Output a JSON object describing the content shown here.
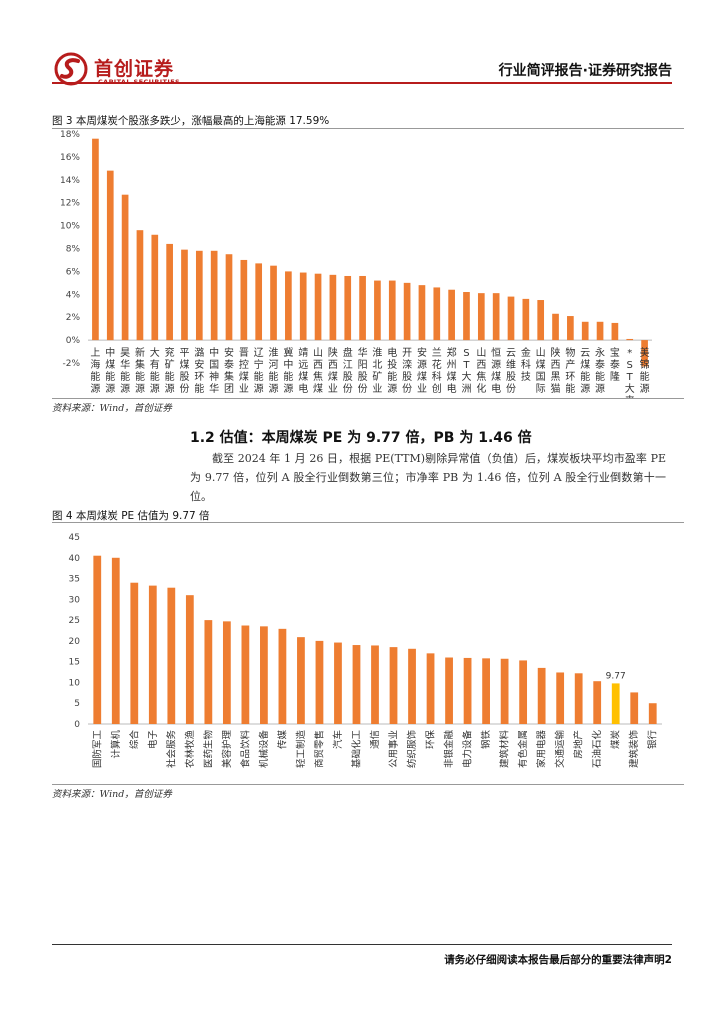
{
  "header": {
    "logo_cn": "首创证券",
    "logo_en": "CAPITAL SECURITIES",
    "title": "行业简评报告·证券研究报告"
  },
  "figure3": {
    "caption": "图 3 本周煤炭个股涨多跌少，涨幅最高的上海能源 17.59%",
    "source": "资料来源：Wind，首创证券"
  },
  "section": {
    "title": "1.2 估值：本周煤炭 PE 为 9.77 倍，PB 为 1.46 倍",
    "paragraph": "截至 2024 年 1 月 26 日，根据 PE(TTM)剔除异常值（负值）后，煤炭板块平均市盈率 PE 为 9.77 倍，位列 A 股全行业倒数第三位；市净率 PB 为 1.46 倍，位列 A 股全行业倒数第十一位。"
  },
  "figure4": {
    "caption": "图 4 本周煤炭 PE 估值为 9.77 倍",
    "source": "资料来源：Wind，首创证券"
  },
  "footer": {
    "text": "请务必仔细阅读本报告最后部分的重要法律声明2"
  },
  "colors": {
    "brand": "#b71c1c",
    "bar": "#ee7d31",
    "highlight": "#ffc000"
  },
  "chart_data": [
    {
      "type": "bar",
      "title": "",
      "categories": [
        "上海能源",
        "中煤能源",
        "昊华能源",
        "新集能源",
        "大有能源",
        "兖矿能源",
        "平煤股份",
        "潞安环能",
        "中国神华",
        "安泰集团",
        "晋控煤业",
        "辽宁能源",
        "淮河能源",
        "冀中能源",
        "靖远煤电",
        "山西焦煤",
        "陕西煤业",
        "盘江股份",
        "华阳股份",
        "淮北矿业",
        "电投能源",
        "开滦股份",
        "安源煤业",
        "兰花科创",
        "郑州煤电",
        "ST大洲",
        "山西焦化",
        "恒源煤电",
        "云维股份",
        "金科技",
        "山煤国际",
        "陕西黑猫",
        "物产环能",
        "云煤能源",
        "永泰能源",
        "宝泰隆",
        "*ST大来",
        "美锦能源"
      ],
      "values": [
        17.59,
        14.8,
        12.7,
        9.6,
        9.2,
        8.4,
        7.9,
        7.8,
        7.8,
        7.5,
        7.0,
        6.7,
        6.5,
        6.0,
        5.9,
        5.8,
        5.7,
        5.6,
        5.6,
        5.2,
        5.2,
        5.0,
        4.8,
        4.6,
        4.4,
        4.2,
        4.1,
        4.1,
        3.8,
        3.6,
        3.5,
        2.3,
        2.1,
        1.6,
        1.6,
        1.5,
        0.1,
        -2.3
      ],
      "xlabel": "",
      "ylabel": "",
      "yticks": [
        "18%",
        "16%",
        "14%",
        "12%",
        "10%",
        "8%",
        "6%",
        "4%",
        "2%",
        "0%",
        "-2%"
      ],
      "ylim": [
        -2,
        18
      ],
      "grid": false,
      "legend": "none"
    },
    {
      "type": "bar",
      "title": "",
      "categories": [
        "国防军工",
        "计算机",
        "综合",
        "电子",
        "社会服务",
        "农林牧渔",
        "医药生物",
        "美容护理",
        "食品饮料",
        "机械设备",
        "传媒",
        "轻工制造",
        "商贸零售",
        "汽车",
        "基础化工",
        "通信",
        "公用事业",
        "纺织服饰",
        "环保",
        "非银金融",
        "电力设备",
        "钢铁",
        "建筑材料",
        "有色金属",
        "家用电器",
        "交通运输",
        "房地产",
        "石油石化",
        "煤炭",
        "建筑装饰",
        "银行"
      ],
      "values": [
        40.5,
        40.0,
        34.0,
        33.3,
        32.8,
        31.0,
        25.0,
        24.7,
        23.7,
        23.5,
        22.9,
        20.9,
        20.0,
        19.6,
        19.0,
        18.9,
        18.5,
        18.1,
        17.0,
        16.0,
        15.9,
        15.8,
        15.7,
        15.3,
        13.5,
        12.4,
        12.2,
        10.3,
        9.77,
        7.6,
        5.0
      ],
      "highlight_category": "煤炭",
      "data_label": "9.77",
      "xlabel": "",
      "ylabel": "",
      "yticks": [
        "45",
        "40",
        "35",
        "30",
        "25",
        "20",
        "15",
        "10",
        "5",
        "0"
      ],
      "ylim": [
        0,
        45
      ],
      "grid": false,
      "legend": "none"
    }
  ]
}
